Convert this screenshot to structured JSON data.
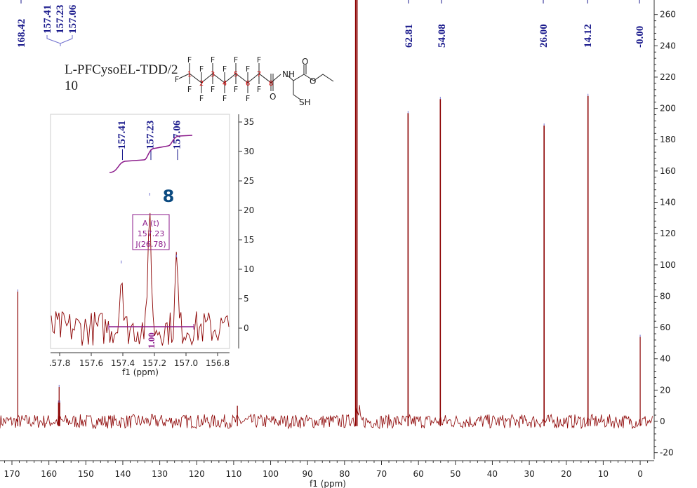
{
  "chart_data": [
    {
      "type": "line",
      "title": "L-PFCysoEL-TDD/2",
      "subtitle": "10",
      "xlabel": "f1 (ppm)",
      "ylabel": "",
      "xlim": [
        172,
        -4
      ],
      "ylim": [
        -25,
        270
      ],
      "x_ticks": [
        170,
        160,
        150,
        140,
        130,
        120,
        110,
        100,
        90,
        80,
        70,
        60,
        50,
        40,
        30,
        20,
        10,
        0
      ],
      "y_ticks": [
        -20,
        0,
        20,
        40,
        60,
        80,
        100,
        120,
        140,
        160,
        180,
        200,
        220,
        240,
        260
      ],
      "peaks": [
        {
          "ppm": 168.42,
          "height": 83,
          "label": "168.42"
        },
        {
          "ppm": 157.41,
          "height": 12,
          "label": "157.41"
        },
        {
          "ppm": 157.23,
          "height": 22,
          "label": "157.23"
        },
        {
          "ppm": 157.06,
          "height": 12,
          "label": "157.06"
        },
        {
          "ppm": 109.0,
          "height": 10,
          "label": ""
        },
        {
          "ppm": 77.0,
          "height": 300,
          "label": ""
        },
        {
          "ppm": 62.81,
          "height": 197,
          "label": "62.81"
        },
        {
          "ppm": 54.08,
          "height": 206,
          "label": "54.08"
        },
        {
          "ppm": 26.0,
          "height": 189,
          "label": "26.00"
        },
        {
          "ppm": 14.12,
          "height": 208,
          "label": "14.12"
        },
        {
          "ppm": 0.0,
          "height": 54,
          "label": "-0.00"
        }
      ]
    },
    {
      "type": "line",
      "title": "inset",
      "xlabel": "f1 (ppm)",
      "xlim": [
        157.85,
        156.68
      ],
      "ylim": [
        -3,
        36
      ],
      "x_ticks": [
        ".57.8",
        "157.6",
        "157.4",
        "157.2",
        "157.0",
        "156.8"
      ],
      "x_tick_values": [
        157.8,
        157.6,
        157.4,
        157.2,
        157.0,
        156.8
      ],
      "y_ticks": [
        0,
        5,
        10,
        15,
        20,
        25,
        30,
        35
      ],
      "peaks": [
        {
          "ppm": 157.41,
          "height": 11,
          "label": "157.41"
        },
        {
          "ppm": 157.23,
          "height": 22.5,
          "label": "157.23"
        },
        {
          "ppm": 157.06,
          "height": 12,
          "label": "157.06"
        }
      ],
      "multiplet": {
        "letter": "A (t)",
        "shift": "157.23",
        "j": "J(26.78)"
      },
      "integral": "1.00",
      "atom_label": "8"
    }
  ],
  "molecule": {
    "atoms": [
      "F",
      "NH",
      "O",
      "O",
      "SH"
    ],
    "numbers": [
      "1",
      "2",
      "3",
      "4",
      "5",
      "6",
      "7",
      "8"
    ]
  },
  "colors": {
    "spectrum": "#8b0000",
    "peak_label": "#1a1a8c",
    "integral": "#8b1a8b",
    "atom_label": "#0b4a80"
  }
}
